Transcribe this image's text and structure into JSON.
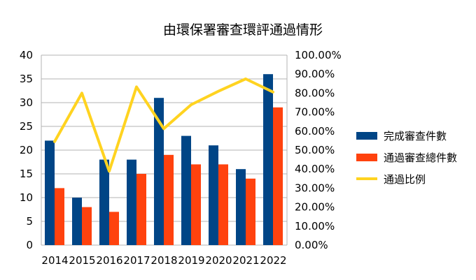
{
  "chart_data": {
    "type": "bar",
    "title": "由環保署審查環評通過情形",
    "categories": [
      "2014",
      "2015",
      "2016",
      "2017",
      "2018",
      "2019",
      "2020",
      "2021",
      "2022"
    ],
    "series": [
      {
        "name": "完成審查件數",
        "type": "bar",
        "axis": "left",
        "color": "#004586",
        "values": [
          22,
          10,
          18,
          18,
          31,
          23,
          21,
          16,
          36
        ]
      },
      {
        "name": "通過審查總件數",
        "type": "bar",
        "axis": "left",
        "color": "#ff420e",
        "values": [
          12,
          8,
          7,
          15,
          19,
          17,
          17,
          14,
          29
        ]
      },
      {
        "name": "通過比例",
        "type": "line",
        "axis": "right",
        "color": "#ffd320",
        "values": [
          0.545,
          0.8,
          0.389,
          0.833,
          0.613,
          0.739,
          0.81,
          0.875,
          0.806
        ]
      }
    ],
    "y_left": {
      "min": 0,
      "max": 40,
      "step": 5,
      "ticks": [
        "0",
        "5",
        "10",
        "15",
        "20",
        "25",
        "30",
        "35",
        "40"
      ]
    },
    "y_right": {
      "min": 0,
      "max": 1,
      "step": 0.1,
      "ticks": [
        "0.00%",
        "10.00%",
        "20.00%",
        "30.00%",
        "40.00%",
        "50.00%",
        "60.00%",
        "70.00%",
        "80.00%",
        "90.00%",
        "100.00%"
      ]
    },
    "grid": true,
    "legend_position": "right"
  }
}
